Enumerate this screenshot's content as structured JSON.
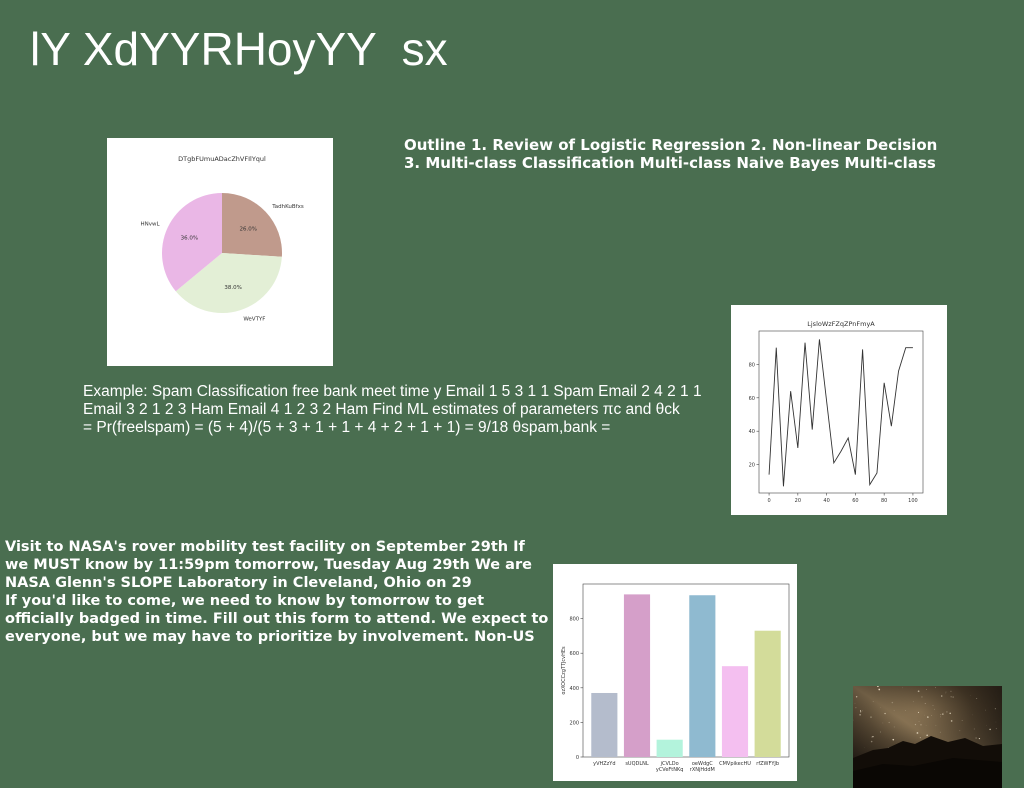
{
  "slide": {
    "title": "lY XdYYRHoyYY  sx",
    "outline_lines": [
      "Outline 1. Review of Logistic Regression 2. Non-linear Decision",
      "3. Multi-class Classification Multi-class Naive Bayes Multi-class"
    ],
    "example_lines": [
      "Example: Spam Classification free bank meet time y Email 1 5 3 1 1 Spam Email 2 4 2 1 1",
      "Email 3 2 1 2 3 Ham Email 4 1 2 3 2 Ham Find ML estimates of parameters πc and θck",
      "= Pr(freelspam) = (5 + 4)/(5 + 3 + 1 + 1 + 4 + 2 + 1 + 1) = 9/18 θspam,bank ="
    ],
    "visit_lines": [
      "Visit to NASA's rover mobility test facility on September 29th If",
      "we MUST know by 11:59pm tomorrow, Tuesday Aug 29th We are",
      "NASA Glenn's SLOPE Laboratory in Cleveland, Ohio on 29",
      "If you'd like to come, we need to know by tomorrow to get",
      "officially badged in time. Fill out this form to attend. We expect to",
      "everyone, but we may have to prioritize by involvement. Non-US"
    ]
  },
  "chart_data": [
    {
      "type": "pie",
      "title": "DTgbFUmuADacZhVFIlYqul",
      "slices": [
        {
          "label": "TadhKuBfxs",
          "value": 26.0,
          "pct_label": "26.0%",
          "color": "#c09a8c"
        },
        {
          "label": "WeVTYF",
          "value": 38.0,
          "pct_label": "38.0%",
          "color": "#e3efd6"
        },
        {
          "label": "HNvwL",
          "value": 36.0,
          "pct_label": "36.0%",
          "color": "#eab7e6"
        }
      ],
      "start_angle_deg": 90,
      "direction": "clockwise"
    },
    {
      "type": "line",
      "title": "LjsloWzFZqZPnFmyA",
      "x": [
        0,
        5,
        10,
        15,
        20,
        25,
        30,
        35,
        40,
        45,
        50,
        55,
        60,
        65,
        70,
        75,
        80,
        85,
        90,
        95,
        100
      ],
      "y": [
        14,
        90,
        7,
        64,
        30,
        93,
        41,
        95,
        58,
        21,
        28,
        36,
        14,
        89,
        8,
        15,
        69,
        43,
        76,
        90,
        90
      ],
      "xlim": [
        -7,
        107
      ],
      "ylim": [
        3,
        100
      ],
      "xticks": [
        0,
        20,
        40,
        60,
        80,
        100
      ],
      "yticks": [
        20,
        40,
        60,
        80
      ],
      "line_color": "#333333",
      "grid": false
    },
    {
      "type": "bar",
      "title": "",
      "categories": [
        "yVHZzYd",
        "sUQDLNL",
        "jCVLDo yCVeFtNKq",
        "oeWdgC rXNjHddM",
        "CMVpikecHU",
        "rfZWFYJb"
      ],
      "category_lines": [
        [
          "yVHZzYd"
        ],
        [
          "sUQDLNL"
        ],
        [
          "jCVLDo",
          "yCVeFtNKq"
        ],
        [
          "oeWdgC",
          "rXNjHddM"
        ],
        [
          "CMVpikecHU"
        ],
        [
          "rfZWFYJb"
        ]
      ],
      "values": [
        370,
        940,
        100,
        935,
        525,
        730
      ],
      "colors": [
        "#b4bccc",
        "#d59fc9",
        "#b3f3dc",
        "#8fbad0",
        "#f4bff0",
        "#d3dc9a"
      ],
      "ylabel": "ozXOCCzgTTJcvHEs",
      "ylim": [
        0,
        1000
      ],
      "yticks": [
        0,
        200,
        400,
        600,
        800
      ]
    }
  ],
  "photo": {
    "description_icon": "starry-sky-photo"
  }
}
